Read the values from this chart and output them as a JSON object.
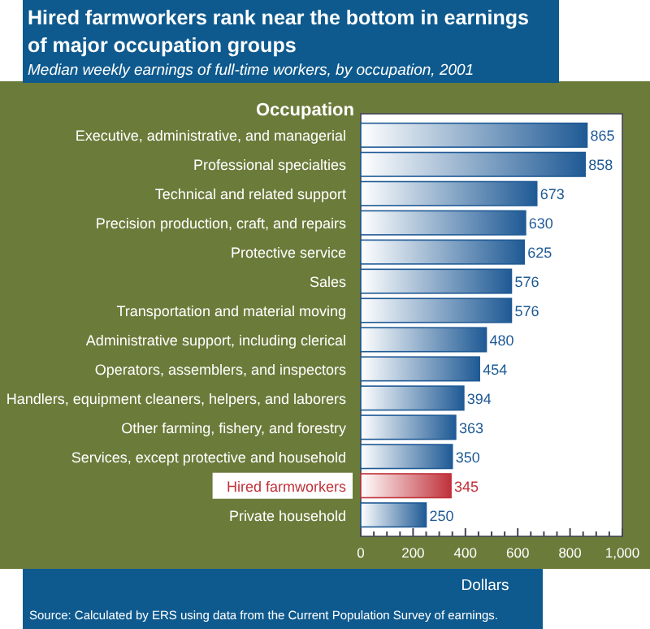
{
  "chart_data": {
    "type": "bar",
    "orientation": "horizontal",
    "title": "Hired farmworkers rank near the bottom in earnings of major occupation groups",
    "subtitle": "Median weekly earnings of full-time workers, by occupation, 2001",
    "ylabel": "Occupation",
    "xlabel": "Dollars",
    "categories": [
      "Executive, administrative, and managerial",
      "Professional specialties",
      "Technical and related support",
      "Precision production, craft, and repairs",
      "Protective service",
      "Sales",
      "Transportation and material moving",
      "Administrative support, including clerical",
      "Operators, assemblers, and inspectors",
      "Handlers, equipment cleaners, helpers, and laborers",
      "Other farming, fishery, and forestry",
      "Services, except protective and household",
      "Hired farmworkers",
      "Private household"
    ],
    "values": [
      865,
      858,
      673,
      630,
      625,
      576,
      576,
      480,
      454,
      394,
      363,
      350,
      345,
      250
    ],
    "colors": [
      "#1f5a95",
      "#1f5a95",
      "#1f5a95",
      "#1f5a95",
      "#1f5a95",
      "#1f5a95",
      "#1f5a95",
      "#1f5a95",
      "#1f5a95",
      "#1f5a95",
      "#1f5a95",
      "#1f5a95",
      "#c0313a",
      "#1f5a95"
    ],
    "data_labels": true,
    "xlim": [
      0,
      1000
    ],
    "xticks": [
      0,
      {
        "value": 50,
        "label": null
      },
      {
        "value": 100,
        "label": null
      },
      {
        "value": 150,
        "label": null
      },
      200,
      {
        "value": 250,
        "label": null
      },
      {
        "value": 300,
        "label": null
      },
      {
        "value": 350,
        "label": null
      },
      400,
      {
        "value": 450,
        "label": null
      },
      {
        "value": 500,
        "label": null
      },
      {
        "value": 550,
        "label": null
      },
      600,
      {
        "value": 650,
        "label": null
      },
      {
        "value": 700,
        "label": null
      },
      {
        "value": 750,
        "label": null
      },
      800,
      {
        "value": 850,
        "label": null
      },
      {
        "value": 900,
        "label": null
      },
      {
        "value": 950,
        "label": null
      },
      {
        "value": 1000,
        "label": "1,000"
      }
    ],
    "annotations": [
      "Source:  Calculated by ERS using data from the Current Population Survey of earnings."
    ]
  }
}
